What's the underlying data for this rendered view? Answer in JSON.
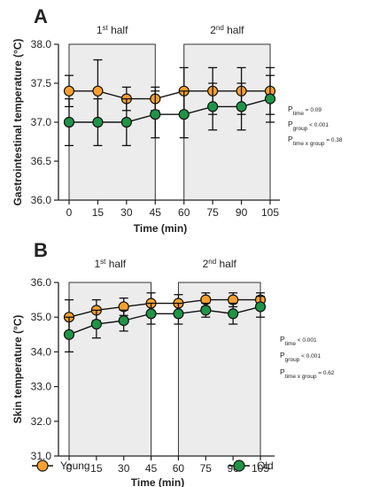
{
  "legend": [
    {
      "name": "Young",
      "color": "#f7a030"
    },
    {
      "name": "Old",
      "color": "#1f9446"
    }
  ],
  "chart_data": [
    {
      "type": "line",
      "panel": "A",
      "ylabel": "Gastrointestinal temperature (°C)",
      "xlabel": "Time (min)",
      "x": [
        0,
        15,
        30,
        45,
        60,
        75,
        90,
        105
      ],
      "ylim": [
        36.0,
        38.0
      ],
      "yticks": [
        "36.0",
        "36.5",
        "37.0",
        "37.5",
        "38.0"
      ],
      "halves": [
        {
          "main": "1",
          "sup": "st",
          "rest": " half",
          "x_from": 0,
          "x_to": 45
        },
        {
          "main": "2",
          "sup": "nd",
          "rest": " half",
          "x_from": 60,
          "x_to": 105
        }
      ],
      "series": [
        {
          "name": "Young",
          "color": "#f7a030",
          "values": [
            37.4,
            37.4,
            37.3,
            37.3,
            37.4,
            37.4,
            37.4,
            37.4
          ],
          "err": [
            0.2,
            0.4,
            0.15,
            0.15,
            0.3,
            0.3,
            0.3,
            0.3
          ]
        },
        {
          "name": "Old",
          "color": "#1f9446",
          "values": [
            37.0,
            37.0,
            37.0,
            37.1,
            37.1,
            37.2,
            37.2,
            37.3
          ],
          "err": [
            0.3,
            0.3,
            0.3,
            0.3,
            0.3,
            0.3,
            0.3,
            0.3
          ]
        }
      ],
      "stats": [
        {
          "p": "P",
          "sub": "time",
          "val": " = 0.09"
        },
        {
          "p": "P",
          "sub": "group",
          "val": " < 0.001"
        },
        {
          "p": "P",
          "sub": "time x group",
          "val": " = 0.38"
        }
      ]
    },
    {
      "type": "line",
      "panel": "B",
      "ylabel": "Skin temperature (°C)",
      "xlabel": "Time (min)",
      "x": [
        0,
        15,
        30,
        45,
        60,
        75,
        90,
        105
      ],
      "ylim": [
        31.0,
        36.0
      ],
      "yticks": [
        "31.0",
        "32.0",
        "33.0",
        "34.0",
        "35.0",
        "36.0"
      ],
      "halves": [
        {
          "main": "1",
          "sup": "st",
          "rest": " half",
          "x_from": 0,
          "x_to": 45
        },
        {
          "main": "2",
          "sup": "nd",
          "rest": " half",
          "x_from": 60,
          "x_to": 105
        }
      ],
      "series": [
        {
          "name": "Young",
          "color": "#f7a030",
          "values": [
            35.0,
            35.2,
            35.3,
            35.4,
            35.4,
            35.5,
            35.5,
            35.5
          ],
          "err": [
            0.5,
            0.3,
            0.25,
            0.3,
            0.25,
            0.2,
            0.2,
            0.2
          ]
        },
        {
          "name": "Old",
          "color": "#1f9446",
          "values": [
            34.5,
            34.8,
            34.9,
            35.1,
            35.1,
            35.2,
            35.1,
            35.3
          ],
          "err": [
            0.5,
            0.4,
            0.3,
            0.3,
            0.3,
            0.2,
            0.3,
            0.3
          ]
        }
      ],
      "stats": [
        {
          "p": "P",
          "sub": "time",
          "val": " < 0.001"
        },
        {
          "p": "P",
          "sub": "group",
          "val": " < 0.001"
        },
        {
          "p": "P",
          "sub": "time x group",
          "val": " = 0.62"
        }
      ]
    }
  ]
}
